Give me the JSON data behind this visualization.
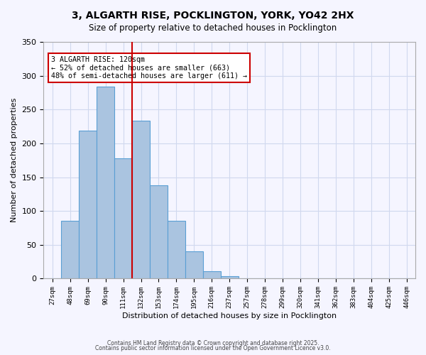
{
  "title_line1": "3, ALGARTH RISE, POCKLINGTON, YORK, YO42 2HX",
  "title_line2": "Size of property relative to detached houses in Pocklington",
  "xlabel": "Distribution of detached houses by size in Pocklington",
  "ylabel": "Number of detached properties",
  "bar_labels": [
    "27sqm",
    "48sqm",
    "69sqm",
    "90sqm",
    "111sqm",
    "132sqm",
    "153sqm",
    "174sqm",
    "195sqm",
    "216sqm",
    "237sqm",
    "257sqm",
    "278sqm",
    "299sqm",
    "320sqm",
    "341sqm",
    "362sqm",
    "383sqm",
    "404sqm",
    "425sqm",
    "446sqm"
  ],
  "bar_values": [
    0,
    85,
    219,
    284,
    178,
    233,
    138,
    85,
    40,
    11,
    4,
    0,
    0,
    0,
    0,
    0,
    0,
    0,
    0,
    0,
    0
  ],
  "bar_color": "#aac4e0",
  "bar_edge_color": "#5a9fd4",
  "ylim": [
    0,
    350
  ],
  "yticks": [
    0,
    50,
    100,
    150,
    200,
    250,
    300,
    350
  ],
  "vline_x_index": 4.5,
  "vline_color": "#cc0000",
  "annotation_text": "3 ALGARTH RISE: 120sqm\n← 52% of detached houses are smaller (663)\n48% of semi-detached houses are larger (611) →",
  "annotation_box_color": "#cc0000",
  "bg_color": "#f5f5ff",
  "grid_color": "#d0d8ee",
  "footer_line1": "Contains HM Land Registry data © Crown copyright and database right 2025.",
  "footer_line2": "Contains public sector information licensed under the Open Government Licence v3.0."
}
